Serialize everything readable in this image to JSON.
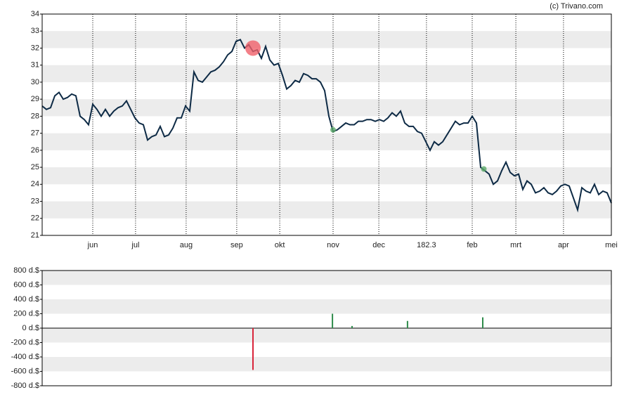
{
  "chart_data": [
    {
      "type": "line",
      "watermark": "(c) Trivano.com",
      "x": [
        0,
        2,
        4,
        6,
        8,
        10,
        12,
        14,
        16,
        18,
        20,
        22,
        24,
        26,
        28,
        30,
        32,
        34,
        36,
        38,
        40,
        42,
        44,
        46,
        48,
        50,
        52,
        54,
        56,
        58,
        60,
        62,
        64,
        66,
        68,
        70,
        72,
        74,
        76,
        78,
        80,
        82,
        84,
        86,
        88,
        90,
        92,
        94,
        96,
        98,
        100,
        102,
        104,
        106,
        108,
        110,
        112,
        114,
        116,
        118,
        120,
        122,
        124,
        126,
        128,
        130,
        132,
        134,
        136,
        138,
        140,
        142,
        144,
        146,
        148,
        150,
        152,
        154,
        156,
        158,
        160,
        162,
        164,
        166,
        168,
        170,
        172,
        174,
        176,
        178,
        180,
        182,
        184,
        186,
        188,
        190,
        192,
        194,
        196,
        198,
        200,
        202,
        204,
        206,
        208,
        210,
        212,
        214,
        216,
        218,
        220,
        222,
        224,
        226,
        228,
        230,
        232,
        234,
        236,
        238,
        240,
        242,
        244,
        246,
        248,
        250,
        252,
        254,
        256,
        258,
        260,
        262,
        264,
        266,
        268,
        270
      ],
      "series": [
        {
          "color": "#0d2a45",
          "values": [
            28.6,
            28.4,
            28.5,
            29.2,
            29.4,
            29.0,
            29.1,
            29.3,
            29.2,
            28.0,
            27.8,
            27.5,
            28.7,
            28.4,
            28.0,
            28.4,
            28.0,
            28.3,
            28.5,
            28.6,
            28.9,
            28.4,
            27.9,
            27.6,
            27.5,
            26.6,
            26.8,
            26.9,
            27.4,
            26.8,
            26.9,
            27.3,
            27.9,
            27.9,
            28.6,
            28.3,
            30.6,
            30.1,
            30.0,
            30.3,
            30.6,
            30.7,
            30.9,
            31.2,
            31.6,
            31.8,
            32.4,
            32.5,
            32.0,
            32.2,
            31.8,
            31.9,
            31.4,
            32.1,
            31.3,
            31.0,
            31.1,
            30.4,
            29.6,
            29.8,
            30.1,
            30.0,
            30.5,
            30.4,
            30.2,
            30.2,
            30.0,
            29.5,
            28.0,
            27.1,
            27.2,
            27.4,
            27.6,
            27.5,
            27.5,
            27.7,
            27.7,
            27.8,
            27.8,
            27.7,
            27.8,
            27.7,
            27.9,
            28.2,
            28.0,
            28.3,
            27.6,
            27.4,
            27.4,
            27.1,
            27.0,
            26.5,
            26.0,
            26.5,
            26.3,
            26.5,
            26.9,
            27.3,
            27.7,
            27.5,
            27.6,
            27.6,
            28.0,
            27.6,
            25.0,
            24.8,
            24.6,
            24.0,
            24.2,
            24.8,
            25.3,
            24.7,
            24.5,
            24.6,
            23.7,
            24.2,
            24.0,
            23.5,
            23.6,
            23.8,
            23.5,
            23.4,
            23.6,
            23.9,
            24.0,
            23.9,
            23.2,
            22.5,
            23.8,
            23.6,
            23.5,
            24.0,
            23.4,
            23.6,
            23.5,
            22.9
          ]
        }
      ],
      "markers": {
        "x": [
          100,
          138,
          209.5
        ],
        "values": [
          32.0,
          27.2,
          24.9
        ],
        "colors": [
          "#f0606a",
          "#5caa6a",
          "#5caa6a"
        ],
        "sizes": [
          11,
          4,
          4
        ]
      },
      "xlim": [
        0,
        270
      ],
      "xticks": [
        {
          "value": 24,
          "label": "jun"
        },
        {
          "value": 44.3,
          "label": "jul"
        },
        {
          "value": 68.3,
          "label": "aug"
        },
        {
          "value": 92.3,
          "label": "sep"
        },
        {
          "value": 112.7,
          "label": "okt"
        },
        {
          "value": 138,
          "label": "nov"
        },
        {
          "value": 159.7,
          "label": "dec"
        },
        182.3,
        {
          "value": 204,
          "label": "feb"
        },
        {
          "value": 224.7,
          "label": "mrt"
        },
        {
          "value": 247.3,
          "label": "apr"
        },
        {
          "value": 270,
          "label": "mei"
        }
      ],
      "ylim": [
        21,
        34
      ],
      "yticks": [
        21,
        22,
        23,
        24,
        25,
        26,
        27,
        28,
        29,
        30,
        31,
        32,
        33,
        34
      ],
      "grid": true
    },
    {
      "type": "bar",
      "x": [
        100,
        137.7,
        147,
        173.3,
        209
      ],
      "values": [
        -580,
        200,
        30,
        100,
        150
      ],
      "positive_color": "#2e8b4a",
      "negative_color": "#d9243a",
      "xlim": [
        0,
        270
      ],
      "ylim": [
        -800,
        800
      ],
      "yticks": [
        {
          "value": 800,
          "label": "800 d.$"
        },
        {
          "value": 600,
          "label": "600 d.$"
        },
        {
          "value": 400,
          "label": "400 d.$"
        },
        {
          "value": 200,
          "label": "200 d.$"
        },
        {
          "value": 0,
          "label": "0 d.$"
        },
        {
          "value": -200,
          "label": "-200 d.$"
        },
        {
          "value": -400,
          "label": "-400 d.$"
        },
        {
          "value": -600,
          "label": "-600 d.$"
        },
        {
          "value": -800,
          "label": "-800 d.$"
        }
      ],
      "grid": true
    }
  ]
}
